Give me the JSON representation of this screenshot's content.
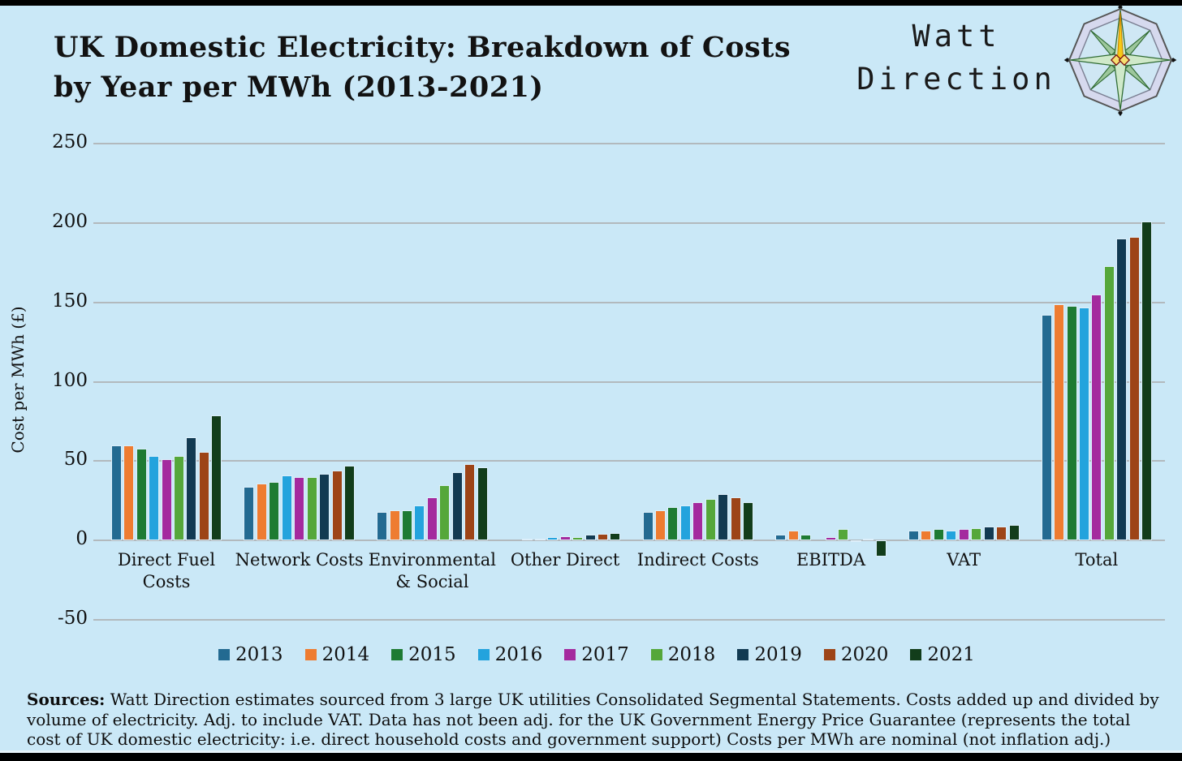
{
  "header": {
    "title_line1": "UK Domestic Electricity: Breakdown of Costs",
    "title_line2": "by Year per MWh (2013-2021)",
    "logo_line1": "Watt",
    "logo_line2": "Direction",
    "logo_icon": "compass-rose-icon"
  },
  "chart_data": {
    "type": "bar",
    "title": "UK Domestic Electricity: Breakdown of Costs by Year per MWh (2013-2021)",
    "xlabel": "",
    "ylabel": "Cost per MWh (£)",
    "ylim": [
      -50,
      250
    ],
    "yticks": [
      250,
      200,
      150,
      100,
      50,
      0,
      -50
    ],
    "grid": true,
    "legend_position": "bottom",
    "categories": [
      "Direct Fuel Costs",
      "Network Costs",
      "Environmental & Social",
      "Other Direct",
      "Indirect Costs",
      "EBITDA",
      "VAT",
      "Total"
    ],
    "category_label_lines": [
      [
        "Direct Fuel",
        "Costs"
      ],
      [
        "Network Costs"
      ],
      [
        "Environmental",
        "& Social"
      ],
      [
        "Other Direct"
      ],
      [
        "Indirect Costs"
      ],
      [
        "EBITDA"
      ],
      [
        "VAT"
      ],
      [
        "Total"
      ]
    ],
    "series": [
      {
        "name": "2013",
        "color": "#236a91",
        "values": [
          60,
          34,
          18,
          0,
          18,
          3.5,
          6,
          142
        ]
      },
      {
        "name": "2014",
        "color": "#ee7c31",
        "values": [
          60,
          36,
          19,
          1,
          19,
          6,
          6,
          149
        ]
      },
      {
        "name": "2015",
        "color": "#1e7b33",
        "values": [
          58,
          37,
          19,
          1,
          21,
          3.5,
          7,
          148
        ]
      },
      {
        "name": "2016",
        "color": "#23a3dd",
        "values": [
          53,
          41,
          22,
          2,
          22,
          0,
          6,
          147
        ]
      },
      {
        "name": "2017",
        "color": "#a42a9e",
        "values": [
          51,
          40,
          27,
          2.5,
          24,
          2,
          7,
          155
        ]
      },
      {
        "name": "2018",
        "color": "#55a73a",
        "values": [
          53,
          40,
          35,
          2,
          26,
          7,
          8,
          173
        ]
      },
      {
        "name": "2019",
        "color": "#123a52",
        "values": [
          65,
          42,
          43,
          3.5,
          29,
          -1,
          9,
          190
        ]
      },
      {
        "name": "2020",
        "color": "#9d4417",
        "values": [
          56,
          44,
          48,
          4,
          27,
          1,
          9,
          191
        ]
      },
      {
        "name": "2021",
        "color": "#123d1b",
        "values": [
          79,
          47,
          46,
          4.5,
          24,
          -10,
          10,
          201
        ]
      }
    ]
  },
  "footer": {
    "sources_label": "Sources:",
    "sources_text": " Watt Direction estimates sourced from 3 large UK utilities Consolidated Segmental Statements. Costs added up and divided by volume of electricity. Adj.  to include VAT. Data has not been adj. for the  UK Government Energy Price Guarantee (represents the total cost of UK domestic electricity: i.e.  direct household costs and government support) Costs per MWh are nominal (not inflation adj.)"
  },
  "colors": {
    "background": "#cae8f7",
    "frame": "#000000",
    "gridline": "#b2b9bd",
    "bar_border": "#ddeffa",
    "text": "#121212"
  }
}
